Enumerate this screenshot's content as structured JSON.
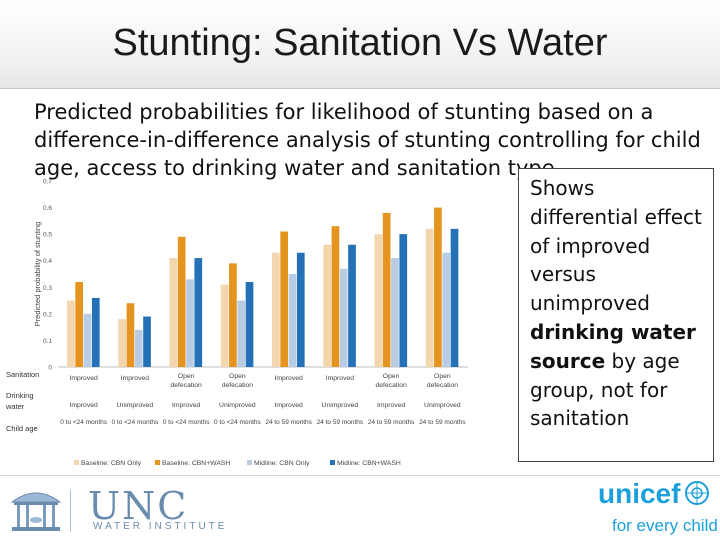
{
  "slide": {
    "title": "Stunting: Sanitation Vs Water",
    "subtitle": "Predicted probabilities for likelihood of stunting based on a difference-in-difference analysis of stunting controlling for child age, access to drinking water and sanitation type"
  },
  "callout": {
    "text_before": "Shows differential effect of improved versus unimproved ",
    "text_bold_1": "drinking water",
    "text_space": " ",
    "text_bold_2": "source",
    "text_after": " by age group, not for sanitation"
  },
  "logos": {
    "unc_name": "UNC",
    "unc_sub": "WATER INSTITUTE",
    "unicef_name": "unicef",
    "unicef_tag": "for every child"
  },
  "colors": {
    "baseline_cbn": "#f3d6ae",
    "baseline_cbn_wash": "#e59420",
    "midline_cbn": "#b8cde3",
    "midline_cbn_wash": "#2471b8"
  },
  "chart_data": {
    "type": "bar",
    "ylabel": "Predicted probability of stunting",
    "ylim": [
      0,
      0.7
    ],
    "yticks": [
      0,
      0.1,
      0.2,
      0.3,
      0.4,
      0.5,
      0.6,
      0.7
    ],
    "row_labels": {
      "sanitation": "Sanitation",
      "water": "Drinking water",
      "age": "Child age"
    },
    "categories": [
      {
        "sanitation": "Improved",
        "water": "Improved",
        "age": "0 to <24 months"
      },
      {
        "sanitation": "Improved",
        "water": "Unimproved",
        "age": "0 to <24 months"
      },
      {
        "sanitation": "Open defecation",
        "water": "Improved",
        "age": "0 to <24 months"
      },
      {
        "sanitation": "Open defecation",
        "water": "Unimproved",
        "age": "0 to <24 months"
      },
      {
        "sanitation": "Improved",
        "water": "Improved",
        "age": "24 to 59 months"
      },
      {
        "sanitation": "Improved",
        "water": "Unimproved",
        "age": "24 to 59 months"
      },
      {
        "sanitation": "Open defecation",
        "water": "Improved",
        "age": "24 to 59 months"
      },
      {
        "sanitation": "Open defecation",
        "water": "Unimproved",
        "age": "24 to 59 months"
      }
    ],
    "series": [
      {
        "name": "Baseline: CBN Only",
        "color": "#f3d6ae",
        "values": [
          0.25,
          0.18,
          0.41,
          0.31,
          0.43,
          0.46,
          0.5,
          0.52
        ]
      },
      {
        "name": "Baseline: CBN+WASH",
        "color": "#e59420",
        "values": [
          0.32,
          0.24,
          0.49,
          0.39,
          0.51,
          0.53,
          0.58,
          0.6
        ]
      },
      {
        "name": "Midline: CBN Only",
        "color": "#b8cde3",
        "values": [
          0.2,
          0.14,
          0.33,
          0.25,
          0.35,
          0.37,
          0.41,
          0.43
        ]
      },
      {
        "name": "Midline: CBN+WASH",
        "color": "#2471b8",
        "values": [
          0.26,
          0.19,
          0.41,
          0.32,
          0.43,
          0.46,
          0.5,
          0.52
        ]
      }
    ],
    "legend_position": "bottom",
    "grid": false
  }
}
